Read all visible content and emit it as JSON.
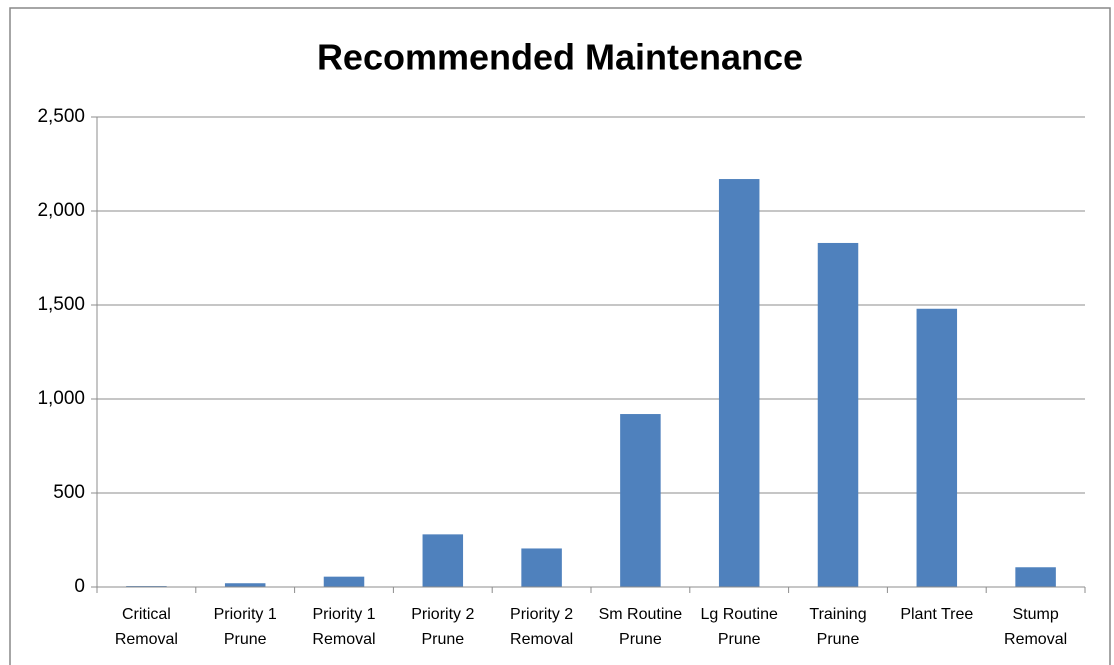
{
  "chart_data": {
    "type": "bar",
    "title": "Recommended Maintenance",
    "categories": [
      "Critical Removal",
      "Priority 1 Prune",
      "Priority 1 Removal",
      "Priority 2 Prune",
      "Priority 2 Removal",
      "Sm Routine Prune",
      "Lg Routine Prune",
      "Training Prune",
      "Plant Tree",
      "Stump Removal"
    ],
    "values": [
      5,
      20,
      55,
      280,
      205,
      920,
      2170,
      1830,
      1480,
      105
    ],
    "color": "#4f81bd",
    "ylim": [
      0,
      2500
    ],
    "yticks": [
      0,
      500,
      {
        "value": 1000,
        "label": "1,000"
      },
      {
        "value": 1500,
        "label": "1,500"
      },
      {
        "value": 2000,
        "label": "2,000"
      },
      {
        "value": 2500,
        "label": "2,500"
      }
    ],
    "grid": true
  }
}
